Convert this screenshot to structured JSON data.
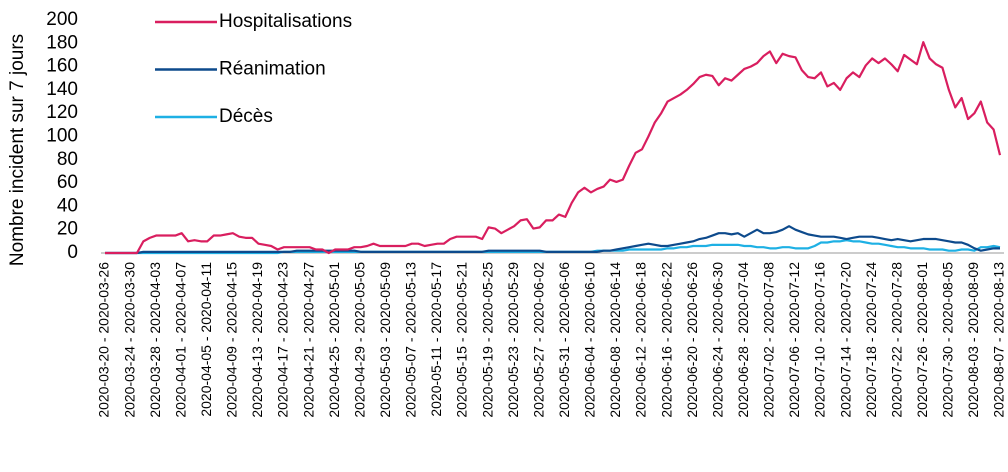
{
  "chart_data": {
    "type": "line",
    "y_label": "Nombre incident sur 7 jours",
    "legend": "top-left",
    "grid": false,
    "ylim": [
      0,
      200
    ],
    "yticks": [
      0,
      20,
      40,
      60,
      80,
      100,
      120,
      140,
      160,
      180,
      200
    ],
    "categories": [
      "2020-03-20 - 2020-03-26",
      null,
      null,
      null,
      "2020-03-24 - 2020-03-30",
      null,
      null,
      null,
      "2020-03-28 - 2020-04-03",
      null,
      null,
      null,
      "2020-04-01 - 2020-04-07",
      null,
      null,
      null,
      "2020-04-05 - 2020-04-11",
      null,
      null,
      null,
      "2020-04-09 - 2020-04-15",
      null,
      null,
      null,
      "2020-04-13 - 2020-04-19",
      null,
      null,
      null,
      "2020-04-17 - 2020-04-23",
      null,
      null,
      null,
      "2020-04-21 - 2020-04-27",
      null,
      null,
      null,
      "2020-04-25 - 2020-05-01",
      null,
      null,
      null,
      "2020-04-29 - 2020-05-05",
      null,
      null,
      null,
      "2020-05-03 - 2020-05-09",
      null,
      null,
      null,
      "2020-05-07 - 2020-05-13",
      null,
      null,
      null,
      "2020-05-11 - 2020-05-17",
      null,
      null,
      null,
      "2020-05-15 - 2020-05-21",
      null,
      null,
      null,
      "2020-05-19 - 2020-05-25",
      null,
      null,
      null,
      "2020-05-23 - 2020-05-29",
      null,
      null,
      null,
      "2020-05-27 - 2020-06-02",
      null,
      null,
      null,
      "2020-05-31 - 2020-06-06",
      null,
      null,
      null,
      "2020-06-04 - 2020-06-10",
      null,
      null,
      null,
      "2020-06-08 - 2020-06-14",
      null,
      null,
      null,
      "2020-06-12 - 2020-06-18",
      null,
      null,
      null,
      "2020-06-16 - 2020-06-22",
      null,
      null,
      null,
      "2020-06-20 - 2020-06-26",
      null,
      null,
      null,
      "2020-06-24 - 2020-06-30",
      null,
      null,
      null,
      "2020-06-28 - 2020-07-04",
      null,
      null,
      null,
      "2020-07-02 - 2020-07-08",
      null,
      null,
      null,
      "2020-07-06 - 2020-07-12",
      null,
      null,
      null,
      "2020-07-10 - 2020-07-16",
      null,
      null,
      null,
      "2020-07-14 - 2020-07-20",
      null,
      null,
      null,
      "2020-07-18 - 2020-07-24",
      null,
      null,
      null,
      "2020-07-22 - 2020-07-28",
      null,
      null,
      null,
      "2020-07-26 - 2020-08-01",
      null,
      null,
      null,
      "2020-07-30 - 2020-08-05",
      null,
      null,
      null,
      "2020-08-03 - 2020-08-09",
      null,
      null,
      null,
      "2020-08-07 - 2020-08-13"
    ],
    "series": [
      {
        "name": "Hospitalisations",
        "color": "#d91e5f",
        "values": [
          0,
          0,
          0,
          0,
          0,
          0,
          10,
          13,
          15,
          15,
          15,
          15,
          17,
          10,
          11,
          10,
          10,
          15,
          15,
          16,
          17,
          14,
          13,
          13,
          8,
          7,
          6,
          3,
          5,
          5,
          5,
          5,
          5,
          3,
          3,
          0,
          3,
          3,
          3,
          5,
          5,
          6,
          8,
          6,
          6,
          6,
          6,
          6,
          8,
          8,
          6,
          7,
          8,
          8,
          12,
          14,
          14,
          14,
          14,
          12,
          22,
          21,
          17,
          20,
          23,
          28,
          29,
          21,
          22,
          28,
          28,
          33,
          31,
          43,
          52,
          56,
          52,
          55,
          57,
          63,
          61,
          63,
          75,
          86,
          89,
          100,
          112,
          120,
          130,
          133,
          136,
          140,
          145,
          151,
          153,
          152,
          144,
          150,
          148,
          153,
          158,
          160,
          163,
          169,
          173,
          163,
          171,
          169,
          168,
          157,
          151,
          150,
          155,
          143,
          146,
          140,
          150,
          155,
          151,
          161,
          167,
          163,
          167,
          162,
          156,
          170,
          166,
          162,
          181,
          167,
          162,
          159,
          140,
          125,
          133,
          115,
          120,
          130,
          112,
          106,
          84
        ]
      },
      {
        "name": "Réanimation",
        "color": "#0d4a8c",
        "values": [
          0,
          0,
          0,
          0,
          0,
          0,
          1,
          1,
          1,
          1,
          1,
          1,
          1,
          1,
          1,
          1,
          1,
          1,
          1,
          1,
          1,
          1,
          1,
          1,
          1,
          1,
          1,
          1,
          1,
          1,
          2,
          2,
          2,
          2,
          2,
          2,
          2,
          2,
          2,
          2,
          1,
          1,
          1,
          1,
          1,
          1,
          1,
          1,
          1,
          1,
          1,
          1,
          1,
          1,
          1,
          1,
          1,
          1,
          1,
          1,
          2,
          2,
          2,
          2,
          2,
          2,
          2,
          2,
          2,
          1,
          1,
          1,
          1,
          1,
          1,
          1,
          1,
          1,
          2,
          2,
          3,
          4,
          5,
          6,
          7,
          8,
          7,
          6,
          6,
          7,
          8,
          9,
          10,
          12,
          13,
          15,
          17,
          17,
          16,
          17,
          14,
          17,
          20,
          17,
          17,
          18,
          20,
          23,
          20,
          18,
          16,
          15,
          14,
          14,
          14,
          13,
          12,
          13,
          14,
          14,
          14,
          13,
          12,
          11,
          12,
          11,
          10,
          11,
          12,
          12,
          12,
          11,
          10,
          9,
          9,
          7,
          4,
          2,
          3,
          4,
          4
        ]
      },
      {
        "name": "Décès",
        "color": "#1eb0e4",
        "values": [
          0,
          0,
          0,
          0,
          0,
          0,
          0,
          0,
          0,
          0,
          0,
          0,
          0,
          0,
          0,
          0,
          0,
          0,
          0,
          0,
          0,
          0,
          0,
          0,
          0,
          0,
          0,
          0,
          1,
          1,
          1,
          1,
          1,
          1,
          1,
          1,
          1,
          1,
          1,
          1,
          1,
          1,
          1,
          1,
          1,
          1,
          1,
          1,
          1,
          1,
          1,
          1,
          1,
          1,
          1,
          1,
          1,
          1,
          1,
          1,
          1,
          1,
          1,
          1,
          1,
          1,
          1,
          1,
          1,
          1,
          1,
          1,
          1,
          1,
          1,
          1,
          1,
          2,
          2,
          2,
          2,
          2,
          3,
          3,
          3,
          3,
          3,
          3,
          4,
          4,
          5,
          5,
          6,
          6,
          6,
          7,
          7,
          7,
          7,
          7,
          6,
          6,
          5,
          5,
          4,
          4,
          5,
          5,
          4,
          4,
          4,
          6,
          9,
          9,
          10,
          10,
          11,
          10,
          10,
          9,
          8,
          8,
          7,
          6,
          5,
          5,
          4,
          4,
          4,
          3,
          3,
          3,
          2,
          2,
          3,
          3,
          2,
          5,
          5,
          6,
          5
        ]
      }
    ]
  }
}
